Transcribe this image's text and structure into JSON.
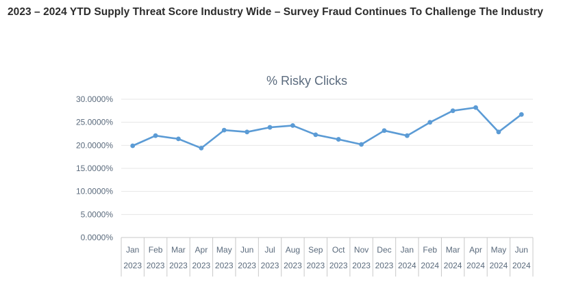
{
  "page": {
    "title": "2023 – 2024 YTD Supply Threat Score Industry Wide – Survey Fraud Continues To Challenge The Industry"
  },
  "chart_data": {
    "type": "line",
    "title": "% Risky Clicks",
    "x_axis": {
      "months": [
        "Jan",
        "Feb",
        "Mar",
        "Apr",
        "May",
        "Jun",
        "Jul",
        "Aug",
        "Sep",
        "Oct",
        "Nov",
        "Dec",
        "Jan",
        "Feb",
        "Mar",
        "Apr",
        "May",
        "Jun"
      ],
      "years": [
        "2023",
        "2023",
        "2023",
        "2023",
        "2023",
        "2023",
        "2023",
        "2023",
        "2023",
        "2023",
        "2023",
        "2023",
        "2024",
        "2024",
        "2024",
        "2024",
        "2024",
        "2024"
      ]
    },
    "y_axis": {
      "min": 0,
      "max": 30,
      "step": 5,
      "tick_labels": [
        "0.0000%",
        "5.0000%",
        "10.0000%",
        "15.0000%",
        "20.0000%",
        "25.0000%",
        "30.0000%"
      ]
    },
    "series": [
      {
        "values": [
          19.9,
          22.1,
          21.4,
          19.4,
          23.3,
          22.9,
          23.9,
          24.3,
          22.3,
          21.3,
          20.2,
          23.2,
          22.1,
          25.0,
          27.5,
          28.2,
          22.9,
          26.7
        ]
      }
    ],
    "colors": {
      "line": "#5b9bd5",
      "grid": "#e6e6e6",
      "axis": "#c8c8c8"
    },
    "grid": true,
    "legend": "none"
  }
}
